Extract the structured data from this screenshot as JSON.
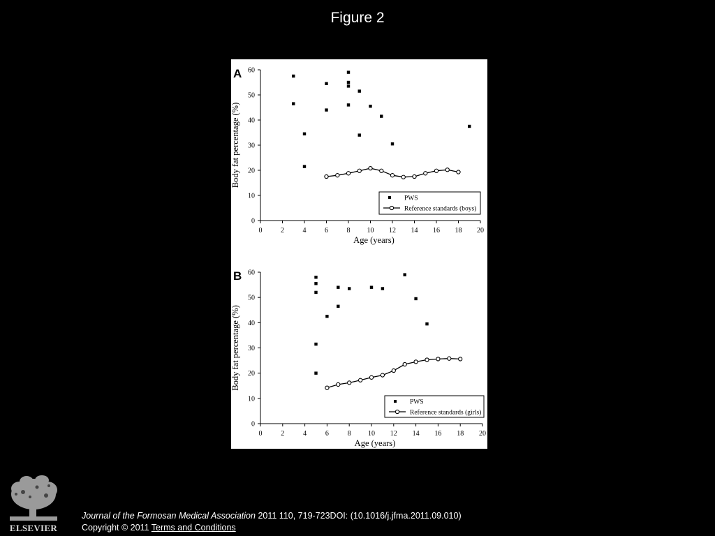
{
  "slide": {
    "title": "Figure 2",
    "journal": "Journal of the Formosan Medical Association",
    "citation": " 2011 110, 719-723DOI: (10.1016/j.jfma.2011.09.010)",
    "copyright": "Copyright © 2011 ",
    "terms_link": " Terms and Conditions",
    "publisher": "ELSEVIER"
  },
  "colors": {
    "background": "#000000",
    "panel": "#ffffff",
    "ink": "#000000",
    "text": "#ffffff"
  },
  "chart_data": [
    {
      "type": "scatter",
      "panel_label": "A",
      "xlabel": "Age (years)",
      "ylabel": "Body fat percentage (%)",
      "xlim": [
        0,
        20
      ],
      "ylim": [
        0,
        60
      ],
      "xticks": [
        0,
        2,
        4,
        6,
        8,
        10,
        12,
        14,
        16,
        18,
        20
      ],
      "yticks": [
        0,
        10,
        20,
        30,
        40,
        50,
        60
      ],
      "legend_position": "bottom-right",
      "series": [
        {
          "name": "PWS",
          "marker": "filled-square",
          "points": [
            [
              3,
              57.5
            ],
            [
              3,
              46.5
            ],
            [
              4,
              34.5
            ],
            [
              4,
              21.5
            ],
            [
              6,
              54.5
            ],
            [
              6,
              44
            ],
            [
              8,
              59
            ],
            [
              8,
              55
            ],
            [
              8,
              53.5
            ],
            [
              8,
              46
            ],
            [
              9,
              51.5
            ],
            [
              9,
              34
            ],
            [
              10,
              45.5
            ],
            [
              11,
              41.5
            ],
            [
              12,
              30.5
            ],
            [
              19,
              37.5
            ]
          ]
        },
        {
          "name": "Reference standards (boys)",
          "marker": "open-circle-line",
          "points": [
            [
              6,
              17.5
            ],
            [
              7,
              18
            ],
            [
              8,
              18.8
            ],
            [
              9,
              19.8
            ],
            [
              10,
              20.8
            ],
            [
              11,
              19.8
            ],
            [
              12,
              18
            ],
            [
              13,
              17.3
            ],
            [
              14,
              17.5
            ],
            [
              15,
              18.8
            ],
            [
              16,
              19.8
            ],
            [
              17,
              20.2
            ],
            [
              18,
              19.3
            ]
          ]
        }
      ]
    },
    {
      "type": "scatter",
      "panel_label": "B",
      "xlabel": "Age (years)",
      "ylabel": "Body fat percentage (%)",
      "xlim": [
        0,
        20
      ],
      "ylim": [
        0,
        60
      ],
      "xticks": [
        0,
        2,
        4,
        6,
        8,
        10,
        12,
        14,
        16,
        18,
        20
      ],
      "yticks": [
        0,
        10,
        20,
        30,
        40,
        50,
        60
      ],
      "legend_position": "bottom-right",
      "series": [
        {
          "name": "PWS",
          "marker": "filled-square",
          "points": [
            [
              5,
              58
            ],
            [
              5,
              55.5
            ],
            [
              5,
              52
            ],
            [
              5,
              31.5
            ],
            [
              5,
              20
            ],
            [
              6,
              42.5
            ],
            [
              7,
              54
            ],
            [
              7,
              46.5
            ],
            [
              8,
              53.5
            ],
            [
              10,
              54
            ],
            [
              11,
              53.5
            ],
            [
              13,
              59
            ],
            [
              14,
              49.5
            ],
            [
              15,
              39.5
            ]
          ]
        },
        {
          "name": "Reference standards (girls)",
          "marker": "open-circle-line",
          "points": [
            [
              6,
              14.2
            ],
            [
              7,
              15.5
            ],
            [
              8,
              16.2
            ],
            [
              9,
              17.2
            ],
            [
              10,
              18.3
            ],
            [
              11,
              19.2
            ],
            [
              12,
              21
            ],
            [
              13,
              23.5
            ],
            [
              14,
              24.5
            ],
            [
              15,
              25.3
            ],
            [
              16,
              25.6
            ],
            [
              17,
              25.8
            ],
            [
              18,
              25.6
            ]
          ]
        }
      ]
    }
  ]
}
